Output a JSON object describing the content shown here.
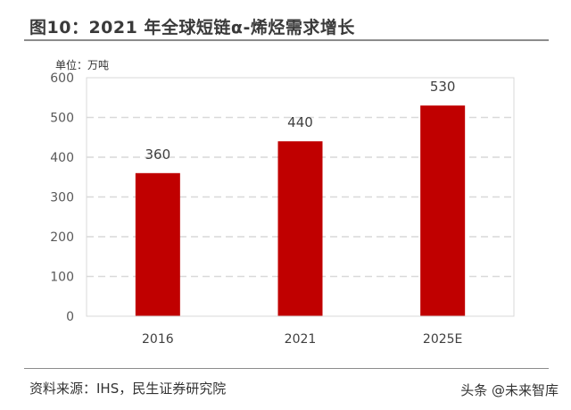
{
  "header": {
    "title": "图10：2021 年全球短链α-烯烃需求增长"
  },
  "chart_data": {
    "type": "bar",
    "unit_label": "单位：万吨",
    "categories": [
      "2016",
      "2021",
      "2025E"
    ],
    "values": [
      360,
      440,
      530
    ],
    "yticks": [
      "0",
      "100",
      "200",
      "300",
      "400",
      "500",
      "600"
    ],
    "ylim": [
      0,
      600
    ],
    "grid": true,
    "bar_color": "#c00000",
    "data_labels": [
      "360",
      "440",
      "530"
    ]
  },
  "footer": {
    "source": "资料来源：IHS，民生证券研究院",
    "watermark": "头条 @未来智库"
  }
}
